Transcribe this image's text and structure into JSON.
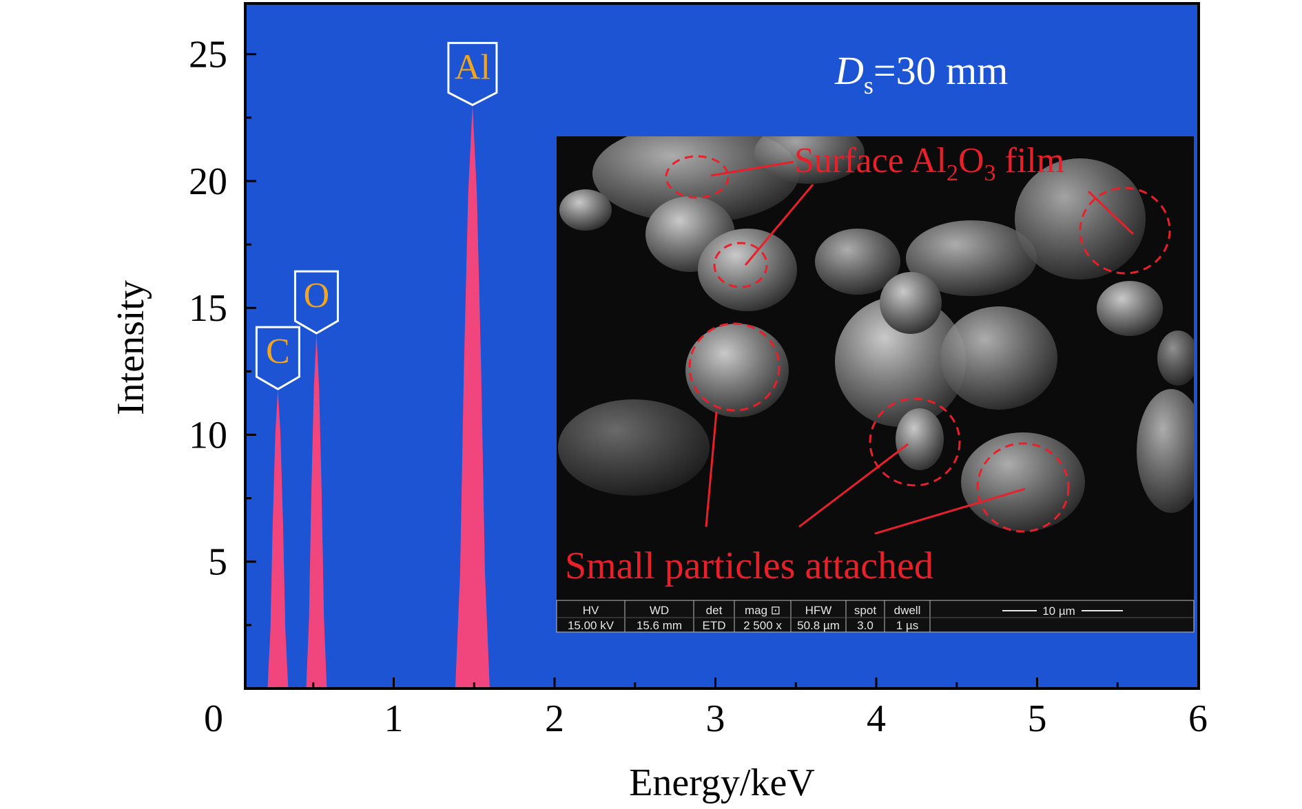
{
  "chart_data": {
    "type": "area",
    "xlabel": "Energy/keV",
    "ylabel": "Intensity",
    "xlim": [
      0,
      6
    ],
    "ylim": [
      0,
      27
    ],
    "x_ticks": [
      0,
      1,
      2,
      3,
      4,
      5,
      6
    ],
    "y_ticks": [
      5,
      10,
      15,
      20,
      25
    ],
    "grid": false,
    "colors": {
      "plot_bg": "#1c54d4",
      "peak_fill": "#f1457d",
      "peak_label": "#f2a51f",
      "annotation": "#e8202a",
      "inset_bg": "#0b0b0b"
    },
    "peaks": [
      {
        "element": "C",
        "energy": 0.28,
        "intensity": 11.8
      },
      {
        "element": "O",
        "energy": 0.52,
        "intensity": 14.0
      },
      {
        "element": "Al",
        "energy": 1.49,
        "intensity": 23.0
      }
    ],
    "annotations": {
      "ds_symbol": "D",
      "ds_subscript": "s",
      "ds_value": "=30 mm"
    }
  },
  "inset": {
    "label_film_prefix": "Surface Al",
    "label_film_sub1": "2",
    "label_film_mid": "O",
    "label_film_sub2": "3",
    "label_film_suffix": " film",
    "label_particles": "Small particles attached",
    "databar": {
      "headers": [
        "HV",
        "WD",
        "det",
        "mag ⊡",
        "HFW",
        "spot",
        "dwell"
      ],
      "values": [
        "15.00 kV",
        "15.6 mm",
        "ETD",
        "2 500 x",
        "50.8 µm",
        "3.0",
        "1 µs"
      ],
      "scale": "10 µm"
    }
  }
}
